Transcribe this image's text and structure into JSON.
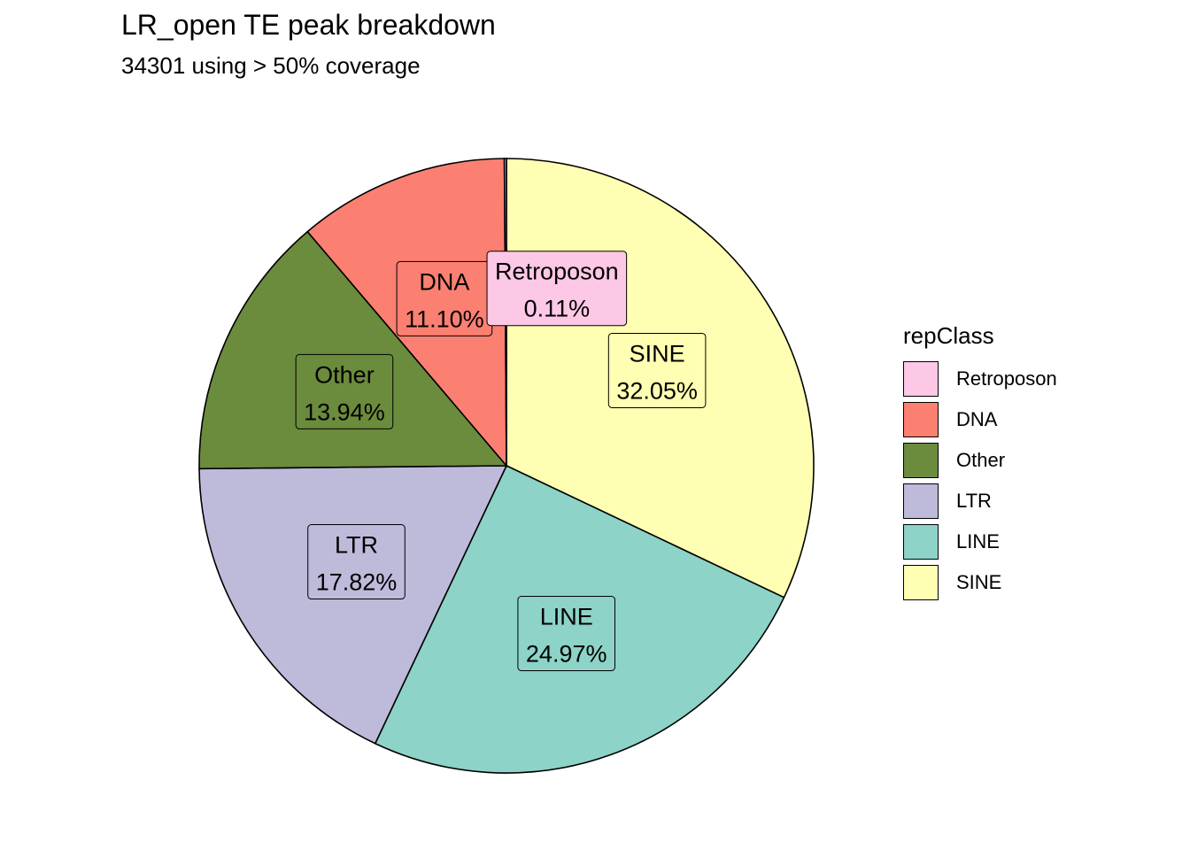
{
  "chart_data": {
    "type": "pie",
    "title": "LR_open TE peak breakdown",
    "subtitle": "34301 using > 50% coverage",
    "legend": {
      "title": "repClass",
      "placement": "right"
    },
    "slices": [
      {
        "name": "Retroposon",
        "percent": 0.11,
        "label": "0.11%",
        "color": "#FCC8E5"
      },
      {
        "name": "DNA",
        "percent": 11.1,
        "label": "11.10%",
        "color": "#FB8072"
      },
      {
        "name": "Other",
        "percent": 13.94,
        "label": "13.94%",
        "color": "#6B8B3D"
      },
      {
        "name": "LTR",
        "percent": 17.82,
        "label": "17.82%",
        "color": "#BEBADA"
      },
      {
        "name": "LINE",
        "percent": 24.97,
        "label": "24.97%",
        "color": "#8DD3C7"
      },
      {
        "name": "SINE",
        "percent": 32.05,
        "label": "32.05%",
        "color": "#FFFFB3"
      }
    ]
  }
}
